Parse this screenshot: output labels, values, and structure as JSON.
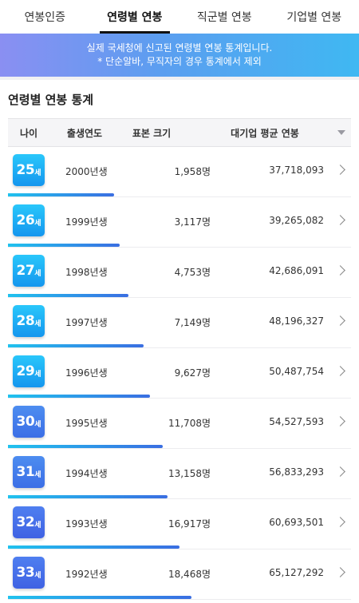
{
  "tabs": [
    {
      "label": "연봉인증"
    },
    {
      "label": "연령별 연봉"
    },
    {
      "label": "직군별 연봉"
    },
    {
      "label": "기업별 연봉"
    }
  ],
  "banner": {
    "line1": "실제 국세청에 신고된 연령별 연봉 통계입니다.",
    "line2": "* 단순알바, 무직자의 경우 통계에서 제외"
  },
  "section_title": "연령별 연봉 통계",
  "table": {
    "headers": {
      "age": "나이",
      "year": "출생연도",
      "sample": "표본 크기",
      "salary": "대기업 평균 연봉"
    },
    "rows": [
      {
        "age": "25",
        "unit": "세",
        "year": "2000년생",
        "sample": "1,958명",
        "salary": "37,718,093",
        "bar": 0.31
      },
      {
        "age": "26",
        "unit": "세",
        "year": "1999년생",
        "sample": "3,117명",
        "salary": "39,265,082",
        "bar": 0.325
      },
      {
        "age": "27",
        "unit": "세",
        "year": "1998년생",
        "sample": "4,753명",
        "salary": "42,686,091",
        "bar": 0.35
      },
      {
        "age": "28",
        "unit": "세",
        "year": "1997년생",
        "sample": "7,149명",
        "salary": "48,196,327",
        "bar": 0.395
      },
      {
        "age": "29",
        "unit": "세",
        "year": "1996년생",
        "sample": "9,627명",
        "salary": "50,487,754",
        "bar": 0.415
      },
      {
        "age": "30",
        "unit": "세",
        "year": "1995년생",
        "sample": "11,708명",
        "salary": "54,527,593",
        "bar": 0.45
      },
      {
        "age": "31",
        "unit": "세",
        "year": "1994년생",
        "sample": "13,158명",
        "salary": "56,833,293",
        "bar": 0.465
      },
      {
        "age": "32",
        "unit": "세",
        "year": "1993년생",
        "sample": "16,917명",
        "salary": "60,693,501",
        "bar": 0.5
      },
      {
        "age": "33",
        "unit": "세",
        "year": "1992년생",
        "sample": "18,468명",
        "salary": "65,127,292",
        "bar": 0.535
      }
    ]
  }
}
